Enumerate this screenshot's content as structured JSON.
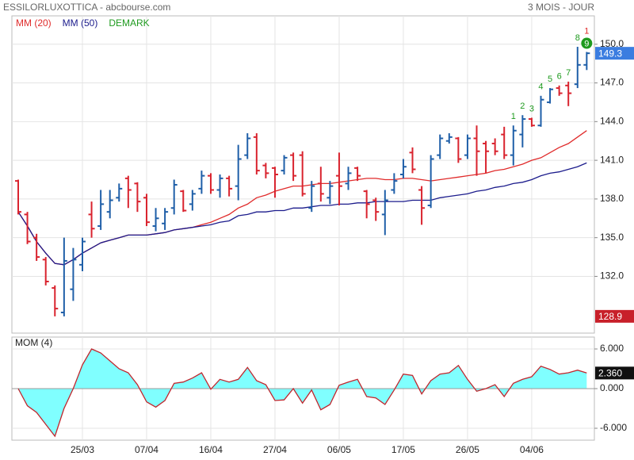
{
  "header": {
    "title": "ESSILORLUXOTTICA - abcbourse.com",
    "period": "3 MOIS - JOUR"
  },
  "chart_data": [
    {
      "type": "ohlc",
      "categories": [
        null,
        null,
        null,
        null,
        null,
        null,
        null,
        "25/03",
        null,
        null,
        null,
        null,
        null,
        null,
        "07/04",
        null,
        null,
        null,
        null,
        null,
        null,
        "16/04",
        null,
        null,
        null,
        null,
        null,
        null,
        "27/04",
        null,
        null,
        null,
        null,
        null,
        null,
        "06/05",
        null,
        null,
        null,
        null,
        null,
        null,
        "17/05",
        null,
        null,
        null,
        null,
        null,
        null,
        "26/05",
        null,
        null,
        null,
        null,
        null,
        null,
        "04/06",
        null,
        null,
        null,
        null,
        null,
        null
      ],
      "open": [
        139.4,
        136.8,
        135.0,
        133.3,
        131.1,
        129.2,
        131.0,
        132.9,
        136.8,
        135.9,
        137.0,
        138.1,
        139.6,
        139.2,
        138.1,
        135.9,
        136.1,
        137.3,
        138.6,
        137.6,
        138.8,
        139.8,
        138.7,
        139.6,
        139.0,
        141.4,
        142.8,
        140.6,
        140.4,
        140.2,
        141.4,
        141.4,
        137.3,
        139.2,
        138.1,
        139.8,
        139.2,
        140.4,
        138.6,
        137.9,
        136.8,
        138.7,
        139.9,
        141.6,
        138.7,
        137.5,
        141.4,
        142.5,
        142.7,
        141.4,
        142.7,
        142.3,
        142.3,
        143.0,
        141.4,
        143.0,
        144.2,
        143.7,
        145.5,
        146.6,
        146.8,
        146.9,
        148.4
      ],
      "high": [
        139.5,
        137.0,
        135.3,
        133.5,
        131.3,
        135.0,
        134.2,
        135.0,
        137.8,
        138.7,
        138.7,
        139.2,
        139.8,
        139.3,
        138.4,
        137.3,
        137.3,
        139.5,
        138.7,
        138.7,
        140.2,
        140.0,
        139.9,
        139.8,
        142.2,
        143.1,
        143.1,
        140.8,
        140.5,
        141.4,
        141.6,
        141.7,
        139.4,
        140.5,
        139.4,
        141.6,
        140.5,
        140.5,
        138.7,
        138.1,
        138.7,
        140.0,
        141.1,
        142.0,
        139.0,
        141.4,
        143.0,
        143.1,
        142.8,
        143.0,
        143.7,
        142.5,
        142.7,
        143.6,
        143.7,
        144.5,
        144.3,
        146.0,
        146.6,
        146.8,
        147.1,
        149.8,
        149.4
      ],
      "low": [
        136.8,
        134.5,
        133.2,
        131.3,
        128.9,
        128.9,
        130.1,
        132.4,
        135.0,
        135.6,
        136.5,
        137.8,
        137.3,
        137.0,
        135.9,
        135.5,
        135.6,
        136.8,
        137.0,
        137.1,
        138.4,
        138.4,
        138.1,
        138.2,
        137.9,
        141.1,
        139.9,
        139.6,
        138.1,
        139.9,
        139.4,
        138.2,
        137.0,
        137.8,
        137.6,
        137.5,
        138.7,
        139.4,
        136.5,
        136.3,
        135.2,
        138.4,
        139.6,
        140.0,
        136.0,
        137.3,
        141.1,
        142.3,
        140.8,
        141.1,
        139.8,
        140.0,
        141.4,
        141.1,
        140.6,
        142.0,
        143.6,
        143.6,
        145.4,
        146.0,
        145.2,
        146.6,
        148.0
      ],
      "close": [
        137.0,
        134.7,
        133.5,
        131.6,
        129.5,
        133.2,
        133.3,
        134.7,
        135.7,
        137.6,
        137.9,
        138.8,
        138.7,
        137.8,
        136.2,
        136.5,
        137.0,
        139.1,
        137.1,
        138.4,
        139.8,
        138.7,
        139.6,
        138.8,
        141.1,
        142.7,
        140.2,
        140.0,
        139.9,
        141.2,
        139.8,
        138.4,
        139.0,
        138.4,
        139.0,
        139.0,
        140.0,
        139.8,
        137.6,
        137.0,
        137.9,
        139.4,
        140.5,
        140.3,
        137.3,
        141.1,
        142.7,
        142.8,
        141.1,
        142.7,
        141.7,
        141.7,
        141.7,
        141.4,
        143.3,
        144.2,
        143.7,
        145.7,
        146.5,
        146.2,
        146.2,
        148.4,
        149.3
      ],
      "up_color": "#1f5fa8",
      "down_color": "#d9232e",
      "series": [
        {
          "name": "MM (20)",
          "color": "#e02b2b",
          "values": [
            137.0,
            135.9,
            134.7,
            133.8,
            133.0,
            132.9,
            133.3,
            133.8,
            134.2,
            134.6,
            134.8,
            135.0,
            135.2,
            135.2,
            135.2,
            135.3,
            135.4,
            135.6,
            135.7,
            135.8,
            136.0,
            136.2,
            136.5,
            136.8,
            137.3,
            137.6,
            138.1,
            138.3,
            138.6,
            138.8,
            139.0,
            139.0,
            139.1,
            139.2,
            139.2,
            139.3,
            139.4,
            139.5,
            139.6,
            139.6,
            139.5,
            139.5,
            139.6,
            139.6,
            139.5,
            139.4,
            139.5,
            139.6,
            139.7,
            139.8,
            139.9,
            140.0,
            140.2,
            140.3,
            140.5,
            140.7,
            141.0,
            141.2,
            141.6,
            142.0,
            142.3,
            142.8,
            143.3
          ]
        },
        {
          "name": "MM (50)",
          "color": "#1c1c8c",
          "values": [
            137.0,
            135.9,
            134.7,
            133.8,
            133.0,
            132.9,
            133.3,
            133.8,
            134.2,
            134.6,
            134.8,
            135.0,
            135.2,
            135.2,
            135.2,
            135.3,
            135.4,
            135.6,
            135.7,
            135.8,
            135.9,
            136.0,
            136.2,
            136.3,
            136.7,
            136.8,
            137.0,
            137.0,
            137.1,
            137.1,
            137.3,
            137.3,
            137.4,
            137.5,
            137.5,
            137.6,
            137.6,
            137.7,
            137.7,
            137.8,
            137.8,
            137.8,
            137.8,
            137.9,
            137.9,
            137.9,
            138.1,
            138.2,
            138.3,
            138.4,
            138.6,
            138.7,
            138.9,
            139.0,
            139.2,
            139.3,
            139.5,
            139.8,
            140.0,
            140.1,
            140.3,
            140.5,
            140.8
          ]
        }
      ],
      "demark": {
        "name": "DEMARK",
        "color": "#1e9a1e",
        "countdown_color": "#e02b2b",
        "setup": [
          null,
          null,
          null,
          null,
          null,
          null,
          null,
          null,
          null,
          null,
          null,
          null,
          null,
          null,
          null,
          null,
          null,
          null,
          null,
          null,
          null,
          null,
          null,
          null,
          null,
          null,
          null,
          null,
          null,
          null,
          null,
          null,
          null,
          null,
          null,
          null,
          null,
          null,
          null,
          null,
          null,
          null,
          null,
          null,
          null,
          null,
          null,
          null,
          null,
          null,
          null,
          null,
          null,
          null,
          1,
          2,
          3,
          4,
          5,
          6,
          7,
          8,
          9
        ],
        "countdown": [
          null,
          null,
          null,
          null,
          null,
          null,
          null,
          null,
          null,
          null,
          null,
          null,
          null,
          null,
          null,
          null,
          null,
          null,
          null,
          null,
          null,
          null,
          null,
          null,
          null,
          null,
          null,
          null,
          null,
          null,
          null,
          null,
          null,
          null,
          null,
          null,
          null,
          null,
          null,
          null,
          null,
          null,
          null,
          null,
          null,
          null,
          null,
          null,
          null,
          null,
          null,
          null,
          null,
          null,
          null,
          null,
          null,
          null,
          null,
          null,
          null,
          null,
          1
        ]
      },
      "ylim": [
        127.6,
        152.2
      ],
      "yticks": [
        {
          "value": 132,
          "label": "132.0"
        },
        {
          "value": 135,
          "label": "135.0"
        },
        {
          "value": 138,
          "label": "138.0"
        },
        {
          "value": 141,
          "label": "141.0"
        },
        {
          "value": 144,
          "label": "144.0"
        },
        {
          "value": 147,
          "label": "147.0"
        },
        {
          "value": 150,
          "label": "150.0"
        }
      ],
      "price_markers": [
        {
          "value": 128.9,
          "color": "#c8202a"
        },
        {
          "value": 149.3,
          "color": "#3b7de0"
        }
      ],
      "grid": true
    },
    {
      "type": "area",
      "title": "MOM (4)",
      "fill": "#80ffff",
      "color": "#c0262d",
      "values": [
        0,
        -2.6,
        -3.6,
        -5.4,
        -7.2,
        -3.0,
        0,
        3.6,
        6.0,
        5.4,
        4.2,
        3.0,
        2.4,
        0.6,
        -2.0,
        -2.8,
        -1.8,
        0.8,
        1.0,
        1.6,
        2.4,
        -0.1,
        1.4,
        1.0,
        1.4,
        3.2,
        1.2,
        0.6,
        -1.8,
        -1.7,
        0,
        -2.2,
        -0.2,
        -3.2,
        -2.4,
        0.5,
        1.0,
        1.4,
        -1.2,
        -1.4,
        -2.4,
        -0.2,
        2.2,
        2.0,
        -0.8,
        1.2,
        2.2,
        2.4,
        3.5,
        1.4,
        -0.4,
        0,
        0.6,
        -1.2,
        0.8,
        1.4,
        1.8,
        3.4,
        2.9,
        2.2,
        2.4,
        2.8,
        2.36
      ],
      "last_label": {
        "value": 2.36,
        "label": "2.360"
      },
      "ylim": [
        -7.8,
        7.8
      ],
      "yticks": [
        {
          "value": 6,
          "label": "6.000"
        },
        {
          "value": 0,
          "label": "0.000"
        },
        {
          "value": -6,
          "label": "-6.000"
        }
      ],
      "grid": true
    }
  ]
}
